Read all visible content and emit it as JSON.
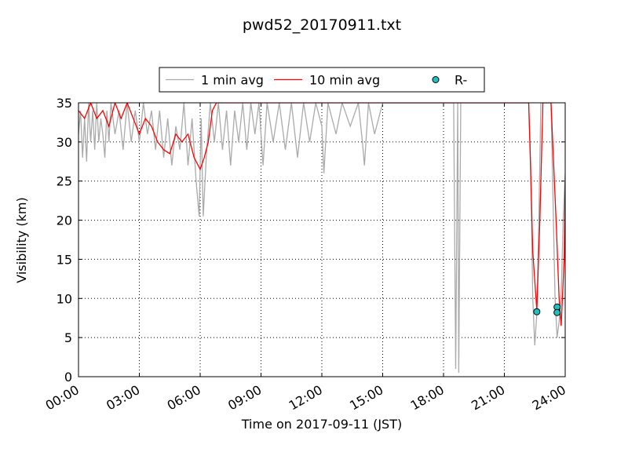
{
  "chart_data": {
    "type": "line",
    "title": "pwd52_20170911.txt",
    "x_label": "Time on 2017-09-11 (JST)",
    "y_label": "Visibility (km)",
    "xlim": [
      0,
      24
    ],
    "xticks": [
      {
        "value": 0,
        "label": "00:00"
      },
      {
        "value": 3,
        "label": "03:00"
      },
      {
        "value": 6,
        "label": "06:00"
      },
      {
        "value": 9,
        "label": "09:00"
      },
      {
        "value": 12,
        "label": "12:00"
      },
      {
        "value": 15,
        "label": "15:00"
      },
      {
        "value": 18,
        "label": "18:00"
      },
      {
        "value": 21,
        "label": "21:00"
      },
      {
        "value": 24,
        "label": "24:00"
      }
    ],
    "ylim": [
      0,
      35
    ],
    "yticks": [
      0,
      5,
      10,
      15,
      20,
      25,
      30,
      35
    ],
    "grid": true,
    "legend": "top",
    "series": [
      {
        "name": "1 min avg",
        "color": "#aaaaaa",
        "style": "line",
        "x": [
          0,
          0.1,
          0.2,
          0.3,
          0.4,
          0.5,
          0.6,
          0.7,
          0.8,
          0.9,
          1.0,
          1.1,
          1.2,
          1.3,
          1.4,
          1.5,
          1.6,
          1.8,
          2.0,
          2.2,
          2.4,
          2.6,
          2.8,
          3.0,
          3.2,
          3.4,
          3.6,
          3.8,
          4.0,
          4.2,
          4.4,
          4.6,
          4.8,
          5.0,
          5.2,
          5.4,
          5.6,
          5.8,
          5.95,
          6.05,
          6.15,
          6.3,
          6.5,
          6.7,
          6.9,
          7.1,
          7.3,
          7.5,
          7.7,
          7.9,
          8.1,
          8.3,
          8.5,
          8.7,
          8.9,
          9.1,
          9.3,
          9.6,
          9.9,
          10.2,
          10.5,
          10.8,
          11.1,
          11.4,
          11.7,
          12.0,
          12.1,
          12.3,
          12.7,
          13.0,
          13.4,
          13.8,
          14.0,
          14.1,
          14.3,
          14.6,
          15.0,
          18.5,
          18.6,
          18.7,
          18.75,
          18.85,
          22.2,
          22.3,
          22.4,
          22.5,
          22.6,
          22.7,
          22.8,
          23.3,
          23.5,
          23.6,
          23.7,
          23.8,
          23.9,
          24
        ],
        "values": [
          31,
          34,
          28,
          33,
          27.5,
          35,
          30,
          34,
          29,
          35,
          30,
          33,
          31,
          28,
          34,
          30,
          35,
          31,
          34,
          29,
          35,
          30,
          34,
          30,
          35,
          31,
          34,
          29,
          34,
          28,
          33,
          27,
          32,
          29,
          35,
          27,
          33,
          25,
          20.5,
          33,
          20.5,
          28,
          35,
          30,
          35,
          29,
          34,
          27,
          34,
          30,
          35,
          29,
          35,
          31,
          35,
          27,
          35,
          30,
          35,
          29,
          35,
          28,
          35,
          30,
          35,
          32,
          26,
          35,
          31,
          35,
          32,
          35,
          30,
          27,
          35,
          31,
          35,
          35,
          1,
          35,
          0.5,
          35,
          35,
          27,
          10,
          4,
          8,
          20,
          35,
          35,
          10,
          5,
          7,
          10,
          20,
          26
        ]
      },
      {
        "name": "10 min avg",
        "color": "#ff0000",
        "style": "line",
        "x": [
          0,
          0.3,
          0.6,
          0.9,
          1.2,
          1.5,
          1.8,
          2.1,
          2.4,
          2.7,
          3.0,
          3.3,
          3.6,
          3.9,
          4.2,
          4.5,
          4.8,
          5.1,
          5.4,
          5.7,
          6.0,
          6.2,
          6.4,
          6.6,
          6.8,
          22.2,
          22.3,
          22.4,
          22.6,
          22.75,
          22.9,
          23.3,
          23.55,
          23.7,
          23.8,
          23.95,
          24
        ],
        "values": [
          34,
          33,
          35,
          33,
          34,
          32,
          35,
          33,
          35,
          33,
          31,
          33,
          32,
          30,
          29,
          28.5,
          31,
          30,
          31,
          28,
          26.5,
          28,
          30,
          34,
          35,
          35,
          26,
          16,
          8.5,
          20,
          35,
          35,
          20,
          10,
          6.5,
          15,
          25
        ]
      },
      {
        "name": "R-",
        "color": "#20c0c0",
        "style": "marker",
        "x": [
          22.6,
          23.6,
          23.6
        ],
        "values": [
          8.3,
          8.9,
          8.2
        ]
      }
    ]
  }
}
